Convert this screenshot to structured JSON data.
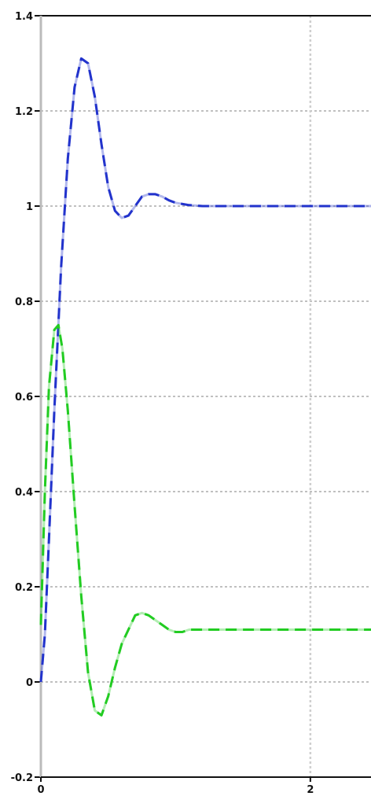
{
  "chart_data": {
    "type": "line",
    "title": "",
    "xlabel": "",
    "ylabel": "",
    "xlim": [
      0,
      2.45
    ],
    "ylim": [
      -0.2,
      1.4
    ],
    "grid": true,
    "legend": "none",
    "y_ticks": [
      {
        "value": 1.4,
        "label": "1.4"
      },
      {
        "value": 1.2,
        "label": "1.2"
      },
      {
        "value": 1.0,
        "label": "1"
      },
      {
        "value": 0.8,
        "label": "0.8"
      },
      {
        "value": 0.6,
        "label": "0.6"
      },
      {
        "value": 0.4,
        "label": "0.4"
      },
      {
        "value": 0.2,
        "label": "0.2"
      },
      {
        "value": 0.0,
        "label": "0"
      },
      {
        "value": -0.2,
        "label": "-0.2"
      }
    ],
    "x_ticks": [
      {
        "value": 0,
        "label": "0"
      },
      {
        "value": 2,
        "label": "2"
      }
    ],
    "series": [
      {
        "color": "#2233cc",
        "style": "dashed",
        "x": [
          0.0,
          0.03,
          0.06,
          0.1,
          0.15,
          0.2,
          0.25,
          0.3,
          0.35,
          0.4,
          0.45,
          0.5,
          0.55,
          0.6,
          0.65,
          0.7,
          0.75,
          0.8,
          0.85,
          0.9,
          0.95,
          1.0,
          1.1,
          1.2,
          1.3,
          1.4,
          1.5,
          1.6,
          1.8,
          2.0,
          2.2,
          2.45
        ],
        "values": [
          0.0,
          0.1,
          0.3,
          0.57,
          0.87,
          1.1,
          1.25,
          1.31,
          1.3,
          1.23,
          1.13,
          1.04,
          0.99,
          0.975,
          0.98,
          1.0,
          1.02,
          1.025,
          1.025,
          1.02,
          1.012,
          1.007,
          1.002,
          1.0,
          1.0,
          1.0,
          1.0,
          1.0,
          1.0,
          1.0,
          1.0,
          1.0
        ]
      },
      {
        "color": "#22cc22",
        "style": "dashed",
        "x": [
          0.0,
          0.03,
          0.06,
          0.1,
          0.13,
          0.16,
          0.2,
          0.25,
          0.3,
          0.35,
          0.4,
          0.45,
          0.5,
          0.55,
          0.6,
          0.65,
          0.7,
          0.75,
          0.8,
          0.85,
          0.9,
          0.95,
          1.0,
          1.05,
          1.1,
          1.2,
          1.3,
          1.4,
          1.6,
          1.8,
          2.0,
          2.2,
          2.45
        ],
        "values": [
          0.12,
          0.4,
          0.62,
          0.74,
          0.75,
          0.7,
          0.57,
          0.37,
          0.18,
          0.02,
          -0.06,
          -0.07,
          -0.03,
          0.03,
          0.08,
          0.11,
          0.14,
          0.145,
          0.14,
          0.13,
          0.12,
          0.11,
          0.105,
          0.105,
          0.11,
          0.11,
          0.11,
          0.11,
          0.11,
          0.11,
          0.11,
          0.11,
          0.11
        ]
      }
    ]
  }
}
